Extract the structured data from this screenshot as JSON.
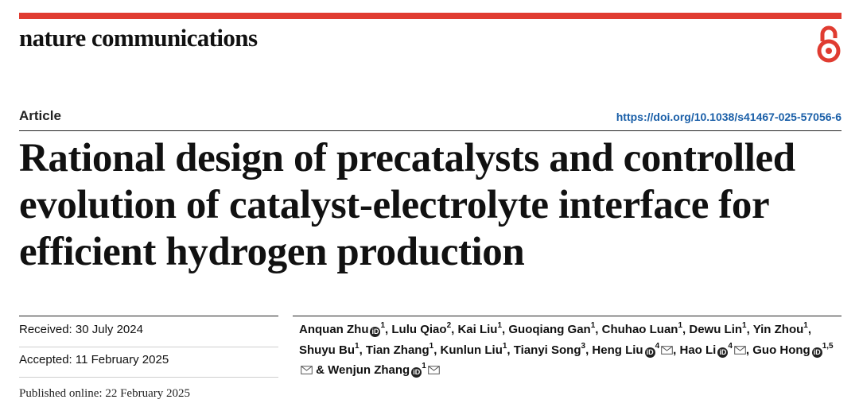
{
  "journal": {
    "name": "nature communications",
    "accent_color": "#e03c31"
  },
  "article": {
    "type_label": "Article",
    "doi_url": "https://doi.org/10.1038/s41467-025-57056-6",
    "doi_color": "#1a5fa8",
    "title": "Rational design of precatalysts and controlled evolution of catalyst-electrolyte interface for efficient hydrogen production"
  },
  "history": {
    "received": "Received: 30 July 2024",
    "accepted": "Accepted: 11 February 2025",
    "published": "Published online: 22 February 2025"
  },
  "authors": [
    {
      "name": "Anquan Zhu",
      "aff": "1",
      "orcid": true,
      "mail": false
    },
    {
      "name": "Lulu Qiao",
      "aff": "2",
      "orcid": false,
      "mail": false
    },
    {
      "name": "Kai Liu",
      "aff": "1",
      "orcid": false,
      "mail": false
    },
    {
      "name": "Guoqiang Gan",
      "aff": "1",
      "orcid": false,
      "mail": false
    },
    {
      "name": "Chuhao Luan",
      "aff": "1",
      "orcid": false,
      "mail": false
    },
    {
      "name": "Dewu Lin",
      "aff": "1",
      "orcid": false,
      "mail": false
    },
    {
      "name": "Yin Zhou",
      "aff": "1",
      "orcid": false,
      "mail": false
    },
    {
      "name": "Shuyu Bu",
      "aff": "1",
      "orcid": false,
      "mail": false
    },
    {
      "name": "Tian Zhang",
      "aff": "1",
      "orcid": false,
      "mail": false
    },
    {
      "name": "Kunlun Liu",
      "aff": "1",
      "orcid": false,
      "mail": false
    },
    {
      "name": "Tianyi Song",
      "aff": "3",
      "orcid": false,
      "mail": false
    },
    {
      "name": "Heng Liu",
      "aff": "4",
      "orcid": true,
      "mail": true
    },
    {
      "name": "Hao Li",
      "aff": "4",
      "orcid": true,
      "mail": true
    },
    {
      "name": "Guo Hong",
      "aff": "1,5",
      "orcid": true,
      "mail": true
    },
    {
      "name": "Wenjun Zhang",
      "aff": "1",
      "orcid": true,
      "mail": true
    }
  ],
  "icons": {
    "open_access": "open-access-icon",
    "orcid": "orcid-icon",
    "mail": "mail-icon"
  }
}
